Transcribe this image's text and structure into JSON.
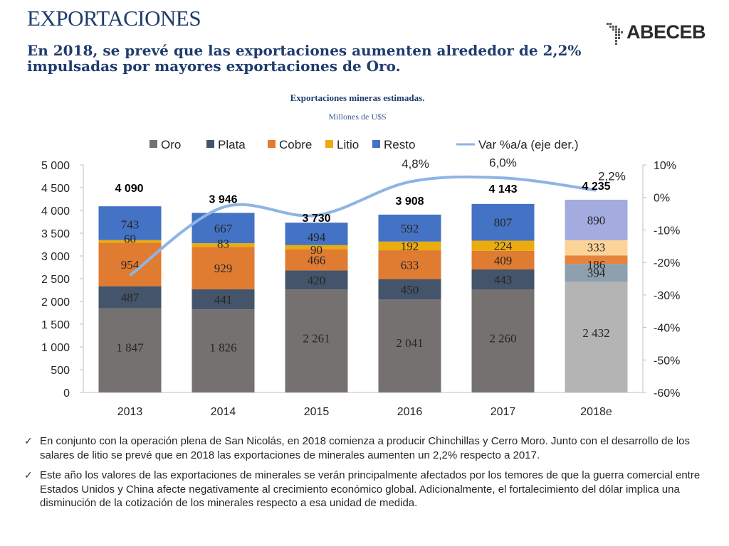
{
  "header": {
    "title": "EXPORTACIONES",
    "subtitle": "En 2018, se prevé que las exportaciones aumenten alrededor de 2,2% impulsadas por mayores exportaciones de Oro."
  },
  "logo": {
    "text": "ABECEB"
  },
  "chart_data": {
    "type": "bar",
    "stacked": true,
    "title": "Exportaciones mineras estimadas.",
    "subtitle": "Millones de U$S",
    "categories": [
      "2013",
      "2014",
      "2015",
      "2016",
      "2017",
      "2018e"
    ],
    "series": [
      {
        "name": "Oro",
        "color": "#767171",
        "values": [
          1847,
          1826,
          2261,
          2041,
          2260,
          2432
        ],
        "labels": [
          "1 847",
          "1 826",
          "2 261",
          "2 041",
          "2 260",
          "2 432"
        ]
      },
      {
        "name": "Plata",
        "color": "#44546A",
        "values": [
          487,
          441,
          420,
          450,
          443,
          394
        ],
        "labels": [
          "487",
          "441",
          "420",
          "450",
          "443",
          "394"
        ]
      },
      {
        "name": "Cobre",
        "color": "#E07B32",
        "values": [
          954,
          929,
          466,
          633,
          409,
          186
        ],
        "labels": [
          "954",
          "929",
          "466",
          "633",
          "409",
          "186"
        ]
      },
      {
        "name": "Litio",
        "color": "#EAAC0E",
        "values": [
          60,
          83,
          90,
          192,
          224,
          333
        ],
        "labels": [
          "60",
          "83",
          "90",
          "192",
          "224",
          "333"
        ]
      },
      {
        "name": "Resto",
        "color": "#4472C4",
        "values": [
          743,
          667,
          494,
          592,
          807,
          890
        ],
        "labels": [
          "743",
          "667",
          "494",
          "592",
          "807",
          "890"
        ]
      }
    ],
    "estimate_colors": [
      "#B4B4B4",
      "#8EA0AE",
      "#E8833C",
      "#FCD49A",
      "#A4ABDF"
    ],
    "totals": [
      "4 090",
      "3 946",
      "3 730",
      "3 908",
      "4 143",
      "4 235"
    ],
    "line": {
      "name": "Var %a/a (eje der.)",
      "color": "#8EB4E3",
      "values": [
        -24,
        -3,
        -5.5,
        4.8,
        6.0,
        2.2
      ],
      "labels": [
        "",
        "",
        "",
        "4,8%",
        "6,0%",
        "2,2%"
      ]
    },
    "y_left": {
      "min": 0,
      "max": 5000,
      "step": 500,
      "ticks": [
        "0",
        "500",
        "1 000",
        "1 500",
        "2 000",
        "2 500",
        "3 000",
        "3 500",
        "4 000",
        "4 500",
        "5 000"
      ]
    },
    "y_right": {
      "min": -60,
      "max": 10,
      "step": 10,
      "ticks": [
        "-60%",
        "-50%",
        "-40%",
        "-30%",
        "-20%",
        "-10%",
        "0%",
        "10%"
      ]
    },
    "legend_position": "top",
    "grid": false
  },
  "bullets": [
    "En conjunto con la operación plena de San Nicolás, en 2018 comienza a producir Chinchillas y Cerro Moro. Junto con el desarrollo de los salares de litio se prevé que en 2018 las exportaciones de minerales aumenten un 2,2% respecto a 2017.",
    "Este año los valores de las exportaciones de minerales se verán principalmente afectados por los temores de que la guerra comercial entre Estados Unidos y China afecte negativamente al crecimiento económico global. Adicionalmente, el fortalecimiento del dólar implica una disminución de la cotización de los minerales respecto a esa unidad de medida."
  ]
}
